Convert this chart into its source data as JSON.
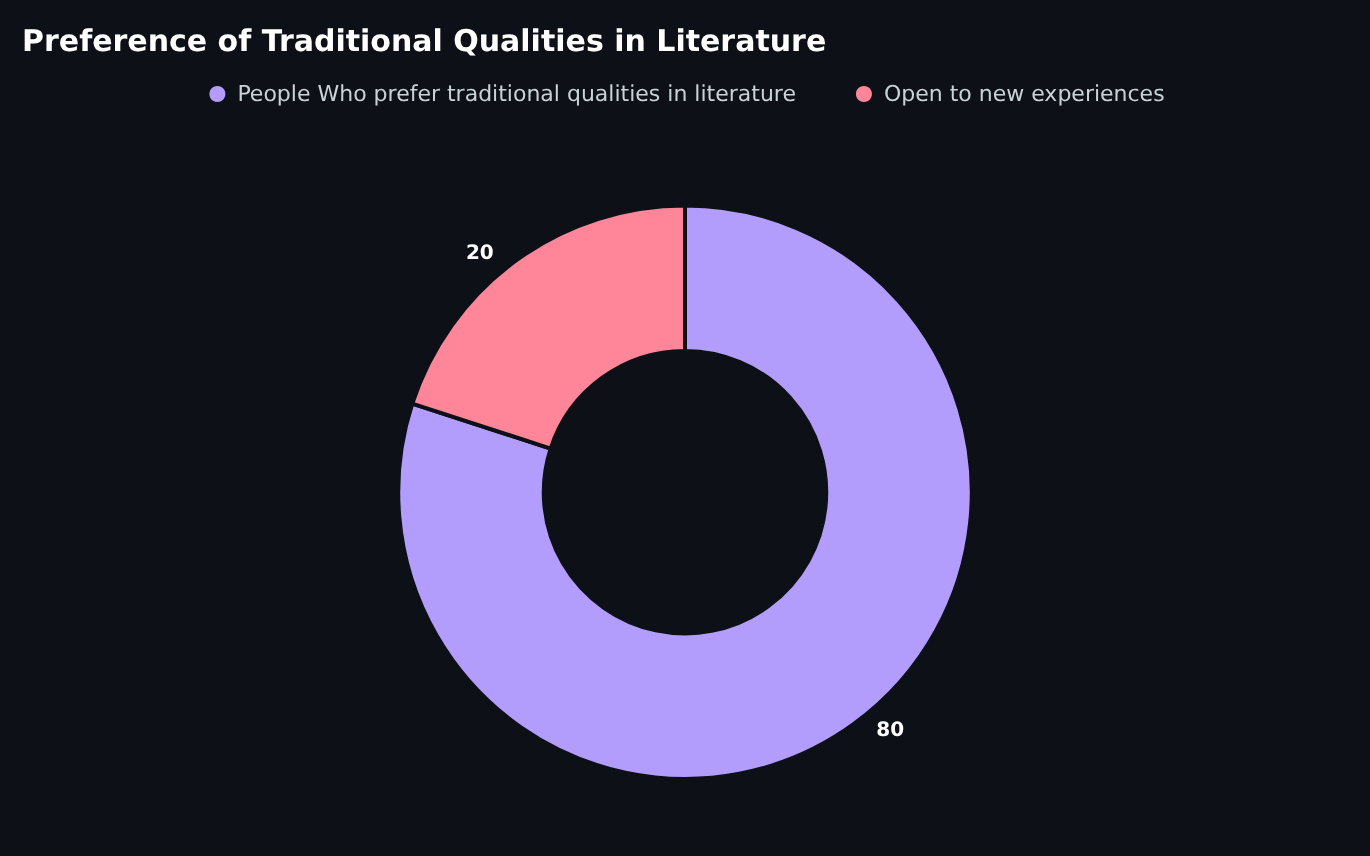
{
  "chart_data": {
    "type": "donut",
    "title": "Preference of Traditional Qualities in Literature",
    "categories": [
      "People Who prefer traditional qualities in literature",
      "Open to new experiences"
    ],
    "values": [
      80,
      20
    ],
    "colors": [
      "#b39dfc",
      "#ff8599"
    ],
    "data_labels": true,
    "legend": "top"
  }
}
